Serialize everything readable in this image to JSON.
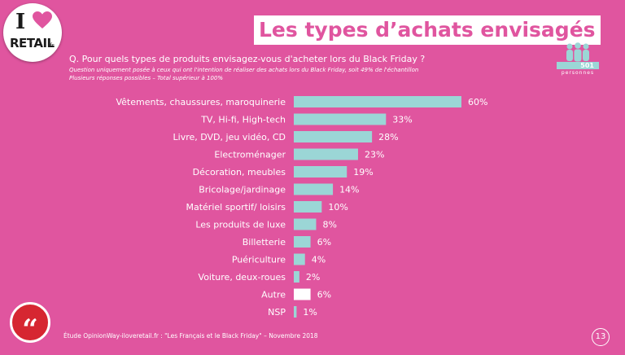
{
  "logo": {
    "letter": "I",
    "word": "RETAIL",
    "suffix": ".fr"
  },
  "title": "Les types d’achats envisagés",
  "question": "Q. Pour quels types de produits envisagez-vous d'acheter lors du Black Friday ?",
  "notes": [
    "Question uniquement posée à ceux qui ont l'intention de réaliser des achats lors du Black Friday, soit 49% de l'échantillon",
    "Plusieurs réponses possibles – Total supérieur à 100%"
  ],
  "sample": {
    "count": "501",
    "label": "personnes"
  },
  "chart_data": {
    "type": "bar",
    "orientation": "horizontal",
    "categories": [
      "Vêtements, chaussures, maroquinerie",
      "TV, Hi-fi, High-tech",
      "Livre, DVD, jeu vidéo, CD",
      "Electroménager",
      "Décoration, meubles",
      "Bricolage/jardinage",
      "Matériel sportif/ loisirs",
      "Les produits de luxe",
      "Billetterie",
      "Puériculture",
      "Voiture, deux-roues",
      "Autre",
      "NSP"
    ],
    "values": [
      60,
      33,
      28,
      23,
      19,
      14,
      10,
      8,
      6,
      4,
      2,
      6,
      1
    ],
    "value_labels": [
      "60%",
      "33%",
      "28%",
      "23%",
      "19%",
      "14%",
      "10%",
      "8%",
      "6%",
      "4%",
      "2%",
      "6%",
      "1%"
    ],
    "bar_colors": [
      "#9bd6d6",
      "#9bd6d6",
      "#9bd6d6",
      "#9bd6d6",
      "#9bd6d6",
      "#9bd6d6",
      "#9bd6d6",
      "#9bd6d6",
      "#9bd6d6",
      "#9bd6d6",
      "#9bd6d6",
      "#ffffff",
      "#9bd6d6"
    ],
    "xlim": [
      0,
      60
    ],
    "grid": false
  },
  "quote_icon": "quotation-mark-icon",
  "quote_glyph": "“",
  "source": "Étude OpinionWay-iloveretail.fr : \"Les Français et le Black Friday\" – Novembre 2018",
  "page_number": "13",
  "colors": {
    "background": "#e0559f",
    "bar": "#9bd6d6",
    "highlight_bar": "#ffffff",
    "badge": "#d62631"
  }
}
